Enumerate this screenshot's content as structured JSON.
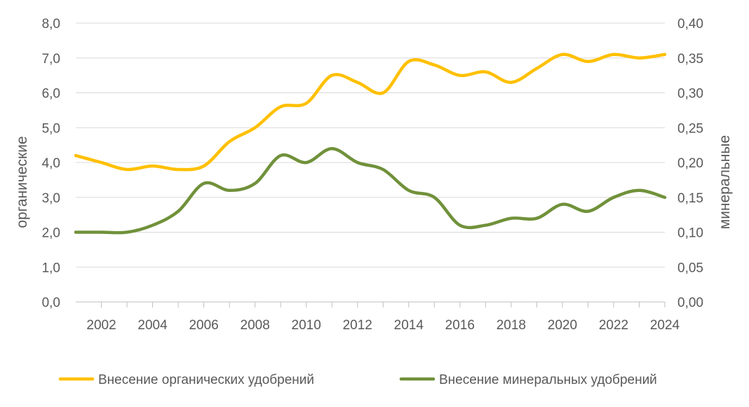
{
  "chart_data": {
    "type": "line",
    "x": [
      2001,
      2002,
      2003,
      2004,
      2005,
      2006,
      2007,
      2008,
      2009,
      2010,
      2011,
      2012,
      2013,
      2014,
      2015,
      2016,
      2017,
      2018,
      2019,
      2020,
      2021,
      2022,
      2023,
      2024
    ],
    "x_ticks": [
      "2002",
      "2004",
      "2006",
      "2008",
      "2010",
      "2012",
      "2014",
      "2016",
      "2018",
      "2020",
      "2022",
      "2024"
    ],
    "y_left": {
      "label": "органические",
      "lim": [
        0,
        8
      ],
      "ticks": [
        "0,0",
        "1,0",
        "2,0",
        "3,0",
        "4,0",
        "5,0",
        "6,0",
        "7,0",
        "8,0"
      ]
    },
    "y_right": {
      "label": "минеральные",
      "lim": [
        0,
        0.4
      ],
      "ticks": [
        "0,00",
        "0,05",
        "0,10",
        "0,15",
        "0,20",
        "0,25",
        "0,30",
        "0,35",
        "0,40"
      ]
    },
    "series": [
      {
        "name": "Внесение органических удобрений",
        "axis": "left",
        "color": "#FFC000",
        "values": [
          4.2,
          4.0,
          3.8,
          3.9,
          3.8,
          3.9,
          4.6,
          5.0,
          5.6,
          5.7,
          6.5,
          6.3,
          6.0,
          6.9,
          6.8,
          6.5,
          6.6,
          6.3,
          6.7,
          7.1,
          6.9,
          7.1,
          7.0,
          7.1
        ]
      },
      {
        "name": "Внесение минеральных удобрений",
        "axis": "right",
        "color": "#70913A",
        "values": [
          0.1,
          0.1,
          0.1,
          0.11,
          0.13,
          0.17,
          0.16,
          0.17,
          0.21,
          0.2,
          0.22,
          0.2,
          0.19,
          0.16,
          0.15,
          0.11,
          0.11,
          0.12,
          0.12,
          0.14,
          0.13,
          0.15,
          0.16,
          0.15
        ]
      }
    ],
    "grid": true,
    "legend": "bottom"
  }
}
